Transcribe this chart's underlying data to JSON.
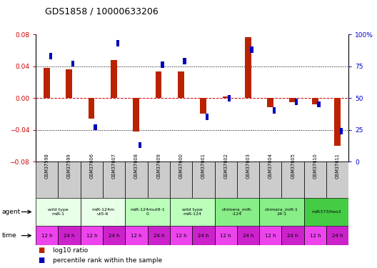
{
  "title": "GDS1858 / 10000633206",
  "samples": [
    "GSM37598",
    "GSM37599",
    "GSM37606",
    "GSM37607",
    "GSM37608",
    "GSM37609",
    "GSM37600",
    "GSM37601",
    "GSM37602",
    "GSM37603",
    "GSM37604",
    "GSM37605",
    "GSM37610",
    "GSM37611"
  ],
  "log10_ratio": [
    0.038,
    0.036,
    -0.026,
    0.048,
    -0.042,
    0.033,
    0.033,
    -0.02,
    0.002,
    0.076,
    -0.012,
    -0.005,
    -0.008,
    -0.06
  ],
  "percentile_rank_raw": [
    83,
    77,
    27,
    93,
    13,
    76,
    79,
    35,
    50,
    88,
    40,
    47,
    45,
    24
  ],
  "ylim": [
    -0.08,
    0.08
  ],
  "y_left_ticks": [
    -0.08,
    -0.04,
    0.0,
    0.04,
    0.08
  ],
  "y_right_ticks": [
    0,
    25,
    50,
    75,
    100
  ],
  "agent_groups": [
    {
      "label": "wild type\nmiR-1",
      "cols": [
        0,
        1
      ],
      "color": "#e8ffe8"
    },
    {
      "label": "miR-124m\nut5-6",
      "cols": [
        2,
        3
      ],
      "color": "#e8ffe8"
    },
    {
      "label": "miR-124mut9-1\n0",
      "cols": [
        4,
        5
      ],
      "color": "#bbffbb"
    },
    {
      "label": "wild type\nmiR-124",
      "cols": [
        6,
        7
      ],
      "color": "#bbffbb"
    },
    {
      "label": "chimera_miR-\n-124",
      "cols": [
        8,
        9
      ],
      "color": "#88ee88"
    },
    {
      "label": "chimera_miR-1\n24-1",
      "cols": [
        10,
        11
      ],
      "color": "#88ee88"
    },
    {
      "label": "miR373/hes3",
      "cols": [
        12,
        13
      ],
      "color": "#44cc44"
    }
  ],
  "time_labels": [
    "12 h",
    "24 h",
    "12 h",
    "24 h",
    "12 h",
    "24 h",
    "12 h",
    "24 h",
    "12 h",
    "24 h",
    "12 h",
    "24 h",
    "12 h",
    "24 h"
  ],
  "time_color": "#ee44ee",
  "time_alt_color": "#cc22cc",
  "sample_bg_color": "#cccccc",
  "bar_color_red": "#bb2200",
  "bar_color_blue": "#0000bb",
  "left_tick_color": "#cc0000",
  "right_tick_color": "#0000cc",
  "legend_red": "log10 ratio",
  "legend_blue": "percentile rank within the sample"
}
